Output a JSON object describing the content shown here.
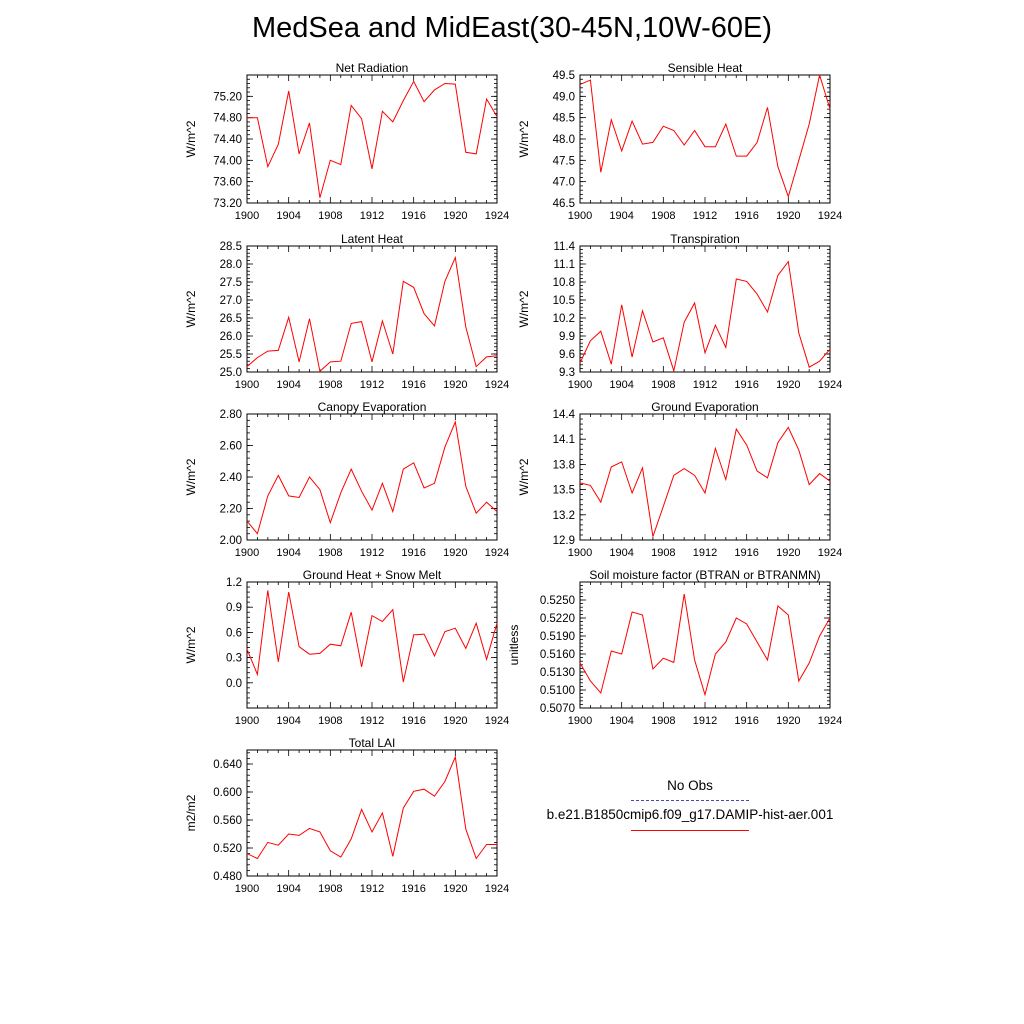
{
  "page": {
    "title": "MedSea and MidEast(30-45N,10W-60E)"
  },
  "legend": [
    {
      "label": "No Obs",
      "color": "#4444bb",
      "dash": "dashed"
    },
    {
      "label": "b.e21.B1850cmip6.f09_g17.DAMIP-hist-aer.001",
      "color": "#ff0000",
      "dash": "solid"
    }
  ],
  "chart_data": [
    {
      "type": "line",
      "title": "Net Radiation",
      "ylabel": "W/m^2",
      "xlim": [
        1900,
        1924
      ],
      "ylim": [
        73.2,
        75.6
      ],
      "yticks": [
        73.2,
        73.6,
        74.0,
        74.4,
        74.8,
        75.2
      ],
      "ytick_labels": [
        "73.20",
        "73.60",
        "74.00",
        "74.40",
        "74.80",
        "75.20"
      ],
      "xticks": [
        1900,
        1904,
        1908,
        1912,
        1916,
        1920,
        1924
      ],
      "x": [
        1900,
        1901,
        1902,
        1903,
        1904,
        1905,
        1906,
        1907,
        1908,
        1909,
        1910,
        1911,
        1912,
        1913,
        1914,
        1915,
        1916,
        1917,
        1918,
        1919,
        1920,
        1921,
        1922,
        1923,
        1924
      ],
      "series": [
        {
          "color": "#ff0000",
          "values": [
            74.8,
            74.8,
            73.88,
            74.3,
            75.3,
            74.12,
            74.7,
            73.3,
            74.0,
            73.92,
            75.03,
            74.78,
            73.84,
            74.92,
            74.72,
            75.12,
            75.48,
            75.1,
            75.32,
            75.44,
            75.43,
            74.15,
            74.12,
            75.15,
            74.82
          ]
        }
      ]
    },
    {
      "type": "line",
      "title": "Sensible Heat",
      "ylabel": "W/m^2",
      "xlim": [
        1900,
        1924
      ],
      "ylim": [
        46.5,
        49.5
      ],
      "yticks": [
        46.5,
        47.0,
        47.5,
        48.0,
        48.5,
        49.0,
        49.5
      ],
      "ytick_labels": [
        "46.5",
        "47.0",
        "47.5",
        "48.0",
        "48.5",
        "49.0",
        "49.5"
      ],
      "xticks": [
        1900,
        1904,
        1908,
        1912,
        1916,
        1920,
        1924
      ],
      "x": [
        1900,
        1901,
        1902,
        1903,
        1904,
        1905,
        1906,
        1907,
        1908,
        1909,
        1910,
        1911,
        1912,
        1913,
        1914,
        1915,
        1916,
        1917,
        1918,
        1919,
        1920,
        1921,
        1922,
        1923,
        1924
      ],
      "series": [
        {
          "color": "#ff0000",
          "values": [
            49.28,
            49.38,
            47.22,
            48.45,
            47.72,
            48.42,
            47.88,
            47.92,
            48.3,
            48.2,
            47.86,
            48.2,
            47.82,
            47.82,
            48.35,
            47.6,
            47.6,
            47.92,
            48.74,
            47.35,
            46.65,
            47.5,
            48.35,
            49.5,
            48.7
          ]
        }
      ]
    },
    {
      "type": "line",
      "title": "Latent Heat",
      "ylabel": "W/m^2",
      "xlim": [
        1900,
        1924
      ],
      "ylim": [
        25.0,
        28.5
      ],
      "yticks": [
        25.0,
        25.5,
        26.0,
        26.5,
        27.0,
        27.5,
        28.0,
        28.5
      ],
      "ytick_labels": [
        "25.0",
        "25.5",
        "26.0",
        "26.5",
        "27.0",
        "27.5",
        "28.0",
        "28.5"
      ],
      "xticks": [
        1900,
        1904,
        1908,
        1912,
        1916,
        1920,
        1924
      ],
      "x": [
        1900,
        1901,
        1902,
        1903,
        1904,
        1905,
        1906,
        1907,
        1908,
        1909,
        1910,
        1911,
        1912,
        1913,
        1914,
        1915,
        1916,
        1917,
        1918,
        1919,
        1920,
        1921,
        1922,
        1923,
        1924
      ],
      "series": [
        {
          "color": "#ff0000",
          "values": [
            25.15,
            25.4,
            25.58,
            25.6,
            26.52,
            25.28,
            26.48,
            25.02,
            25.28,
            25.3,
            26.35,
            26.4,
            25.28,
            26.42,
            25.5,
            27.52,
            27.35,
            26.62,
            26.28,
            27.52,
            28.18,
            26.25,
            25.15,
            25.42,
            25.45
          ]
        }
      ]
    },
    {
      "type": "line",
      "title": "Transpiration",
      "ylabel": "W/m^2",
      "xlim": [
        1900,
        1924
      ],
      "ylim": [
        9.3,
        11.4
      ],
      "yticks": [
        9.3,
        9.6,
        9.9,
        10.2,
        10.5,
        10.8,
        11.1,
        11.4
      ],
      "ytick_labels": [
        "9.3",
        "9.6",
        "9.9",
        "10.2",
        "10.5",
        "10.8",
        "11.1",
        "11.4"
      ],
      "xticks": [
        1900,
        1904,
        1908,
        1912,
        1916,
        1920,
        1924
      ],
      "x": [
        1900,
        1901,
        1902,
        1903,
        1904,
        1905,
        1906,
        1907,
        1908,
        1909,
        1910,
        1911,
        1912,
        1913,
        1914,
        1915,
        1916,
        1917,
        1918,
        1919,
        1920,
        1921,
        1922,
        1923,
        1924
      ],
      "series": [
        {
          "color": "#ff0000",
          "values": [
            9.45,
            9.82,
            9.98,
            9.43,
            10.42,
            9.55,
            10.32,
            9.8,
            9.87,
            9.32,
            10.13,
            10.45,
            9.62,
            10.08,
            9.71,
            10.85,
            10.81,
            10.6,
            10.3,
            10.91,
            11.14,
            9.95,
            9.38,
            9.48,
            9.68
          ]
        }
      ]
    },
    {
      "type": "line",
      "title": "Canopy Evaporation",
      "ylabel": "W/m^2",
      "xlim": [
        1900,
        1924
      ],
      "ylim": [
        2.0,
        2.8
      ],
      "yticks": [
        2.0,
        2.2,
        2.4,
        2.6,
        2.8
      ],
      "ytick_labels": [
        "2.00",
        "2.20",
        "2.40",
        "2.60",
        "2.80"
      ],
      "xticks": [
        1900,
        1904,
        1908,
        1912,
        1916,
        1920,
        1924
      ],
      "x": [
        1900,
        1901,
        1902,
        1903,
        1904,
        1905,
        1906,
        1907,
        1908,
        1909,
        1910,
        1911,
        1912,
        1913,
        1914,
        1915,
        1916,
        1917,
        1918,
        1919,
        1920,
        1921,
        1922,
        1923,
        1924
      ],
      "series": [
        {
          "color": "#ff0000",
          "values": [
            2.12,
            2.04,
            2.28,
            2.41,
            2.28,
            2.27,
            2.4,
            2.32,
            2.11,
            2.3,
            2.45,
            2.31,
            2.19,
            2.36,
            2.18,
            2.45,
            2.49,
            2.33,
            2.36,
            2.59,
            2.75,
            2.34,
            2.17,
            2.24,
            2.18
          ]
        }
      ]
    },
    {
      "type": "line",
      "title": "Ground Evaporation",
      "ylabel": "W/m^2",
      "xlim": [
        1900,
        1924
      ],
      "ylim": [
        12.9,
        14.4
      ],
      "yticks": [
        12.9,
        13.2,
        13.5,
        13.8,
        14.1,
        14.4
      ],
      "ytick_labels": [
        "12.9",
        "13.2",
        "13.5",
        "13.8",
        "14.1",
        "14.4"
      ],
      "xticks": [
        1900,
        1904,
        1908,
        1912,
        1916,
        1920,
        1924
      ],
      "x": [
        1900,
        1901,
        1902,
        1903,
        1904,
        1905,
        1906,
        1907,
        1908,
        1909,
        1910,
        1911,
        1912,
        1913,
        1914,
        1915,
        1916,
        1917,
        1918,
        1919,
        1920,
        1921,
        1922,
        1923,
        1924
      ],
      "series": [
        {
          "color": "#ff0000",
          "values": [
            13.58,
            13.55,
            13.35,
            13.77,
            13.83,
            13.46,
            13.76,
            12.94,
            13.3,
            13.67,
            13.75,
            13.67,
            13.46,
            13.99,
            13.62,
            14.22,
            14.03,
            13.72,
            13.64,
            14.06,
            14.24,
            13.97,
            13.56,
            13.69,
            13.6
          ]
        }
      ]
    },
    {
      "type": "line",
      "title": "Ground Heat + Snow Melt",
      "ylabel": "W/m^2",
      "xlim": [
        1900,
        1924
      ],
      "ylim": [
        -0.3,
        1.2
      ],
      "yticks": [
        0.0,
        0.3,
        0.6,
        0.9,
        1.2
      ],
      "ytick_labels": [
        "0.0",
        "0.3",
        "0.6",
        "0.9",
        "1.2"
      ],
      "xticks": [
        1900,
        1904,
        1908,
        1912,
        1916,
        1920,
        1924
      ],
      "x": [
        1900,
        1901,
        1902,
        1903,
        1904,
        1905,
        1906,
        1907,
        1908,
        1909,
        1910,
        1911,
        1912,
        1913,
        1914,
        1915,
        1916,
        1917,
        1918,
        1919,
        1920,
        1921,
        1922,
        1923,
        1924
      ],
      "series": [
        {
          "color": "#ff0000",
          "values": [
            0.4,
            0.1,
            1.1,
            0.25,
            1.08,
            0.43,
            0.34,
            0.35,
            0.46,
            0.44,
            0.84,
            0.19,
            0.8,
            0.73,
            0.87,
            0.01,
            0.57,
            0.58,
            0.32,
            0.61,
            0.65,
            0.41,
            0.71,
            0.28,
            0.71
          ]
        }
      ]
    },
    {
      "type": "line",
      "title": "Soil moisture factor (BTRAN or BTRANMN)",
      "ylabel": "unitless",
      "xlim": [
        1900,
        1924
      ],
      "ylim": [
        0.507,
        0.528
      ],
      "yticks": [
        0.507,
        0.51,
        0.513,
        0.516,
        0.519,
        0.522,
        0.525
      ],
      "ytick_labels": [
        "0.5070",
        "0.5100",
        "0.5130",
        "0.5160",
        "0.5190",
        "0.5220",
        "0.5250"
      ],
      "xticks": [
        1900,
        1904,
        1908,
        1912,
        1916,
        1920,
        1924
      ],
      "x": [
        1900,
        1901,
        1902,
        1903,
        1904,
        1905,
        1906,
        1907,
        1908,
        1909,
        1910,
        1911,
        1912,
        1913,
        1914,
        1915,
        1916,
        1917,
        1918,
        1919,
        1920,
        1921,
        1922,
        1923,
        1924
      ],
      "series": [
        {
          "color": "#ff0000",
          "values": [
            0.5145,
            0.5115,
            0.5095,
            0.5165,
            0.516,
            0.523,
            0.5225,
            0.5135,
            0.5153,
            0.5146,
            0.526,
            0.515,
            0.5092,
            0.516,
            0.518,
            0.522,
            0.521,
            0.518,
            0.515,
            0.524,
            0.5225,
            0.5115,
            0.5145,
            0.519,
            0.522
          ]
        }
      ]
    },
    {
      "type": "line",
      "title": "Total LAI",
      "ylabel": "m2/m2",
      "xlim": [
        1900,
        1924
      ],
      "ylim": [
        0.48,
        0.66
      ],
      "yticks": [
        0.48,
        0.52,
        0.56,
        0.6,
        0.64
      ],
      "ytick_labels": [
        "0.480",
        "0.520",
        "0.560",
        "0.600",
        "0.640"
      ],
      "xticks": [
        1900,
        1904,
        1908,
        1912,
        1916,
        1920,
        1924
      ],
      "x": [
        1900,
        1901,
        1902,
        1903,
        1904,
        1905,
        1906,
        1907,
        1908,
        1909,
        1910,
        1911,
        1912,
        1913,
        1914,
        1915,
        1916,
        1917,
        1918,
        1919,
        1920,
        1921,
        1922,
        1923,
        1924
      ],
      "series": [
        {
          "color": "#ff0000",
          "values": [
            0.512,
            0.505,
            0.528,
            0.524,
            0.54,
            0.538,
            0.548,
            0.543,
            0.516,
            0.507,
            0.533,
            0.575,
            0.543,
            0.57,
            0.508,
            0.577,
            0.601,
            0.604,
            0.594,
            0.615,
            0.65,
            0.547,
            0.505,
            0.525,
            0.525
          ]
        }
      ]
    }
  ]
}
